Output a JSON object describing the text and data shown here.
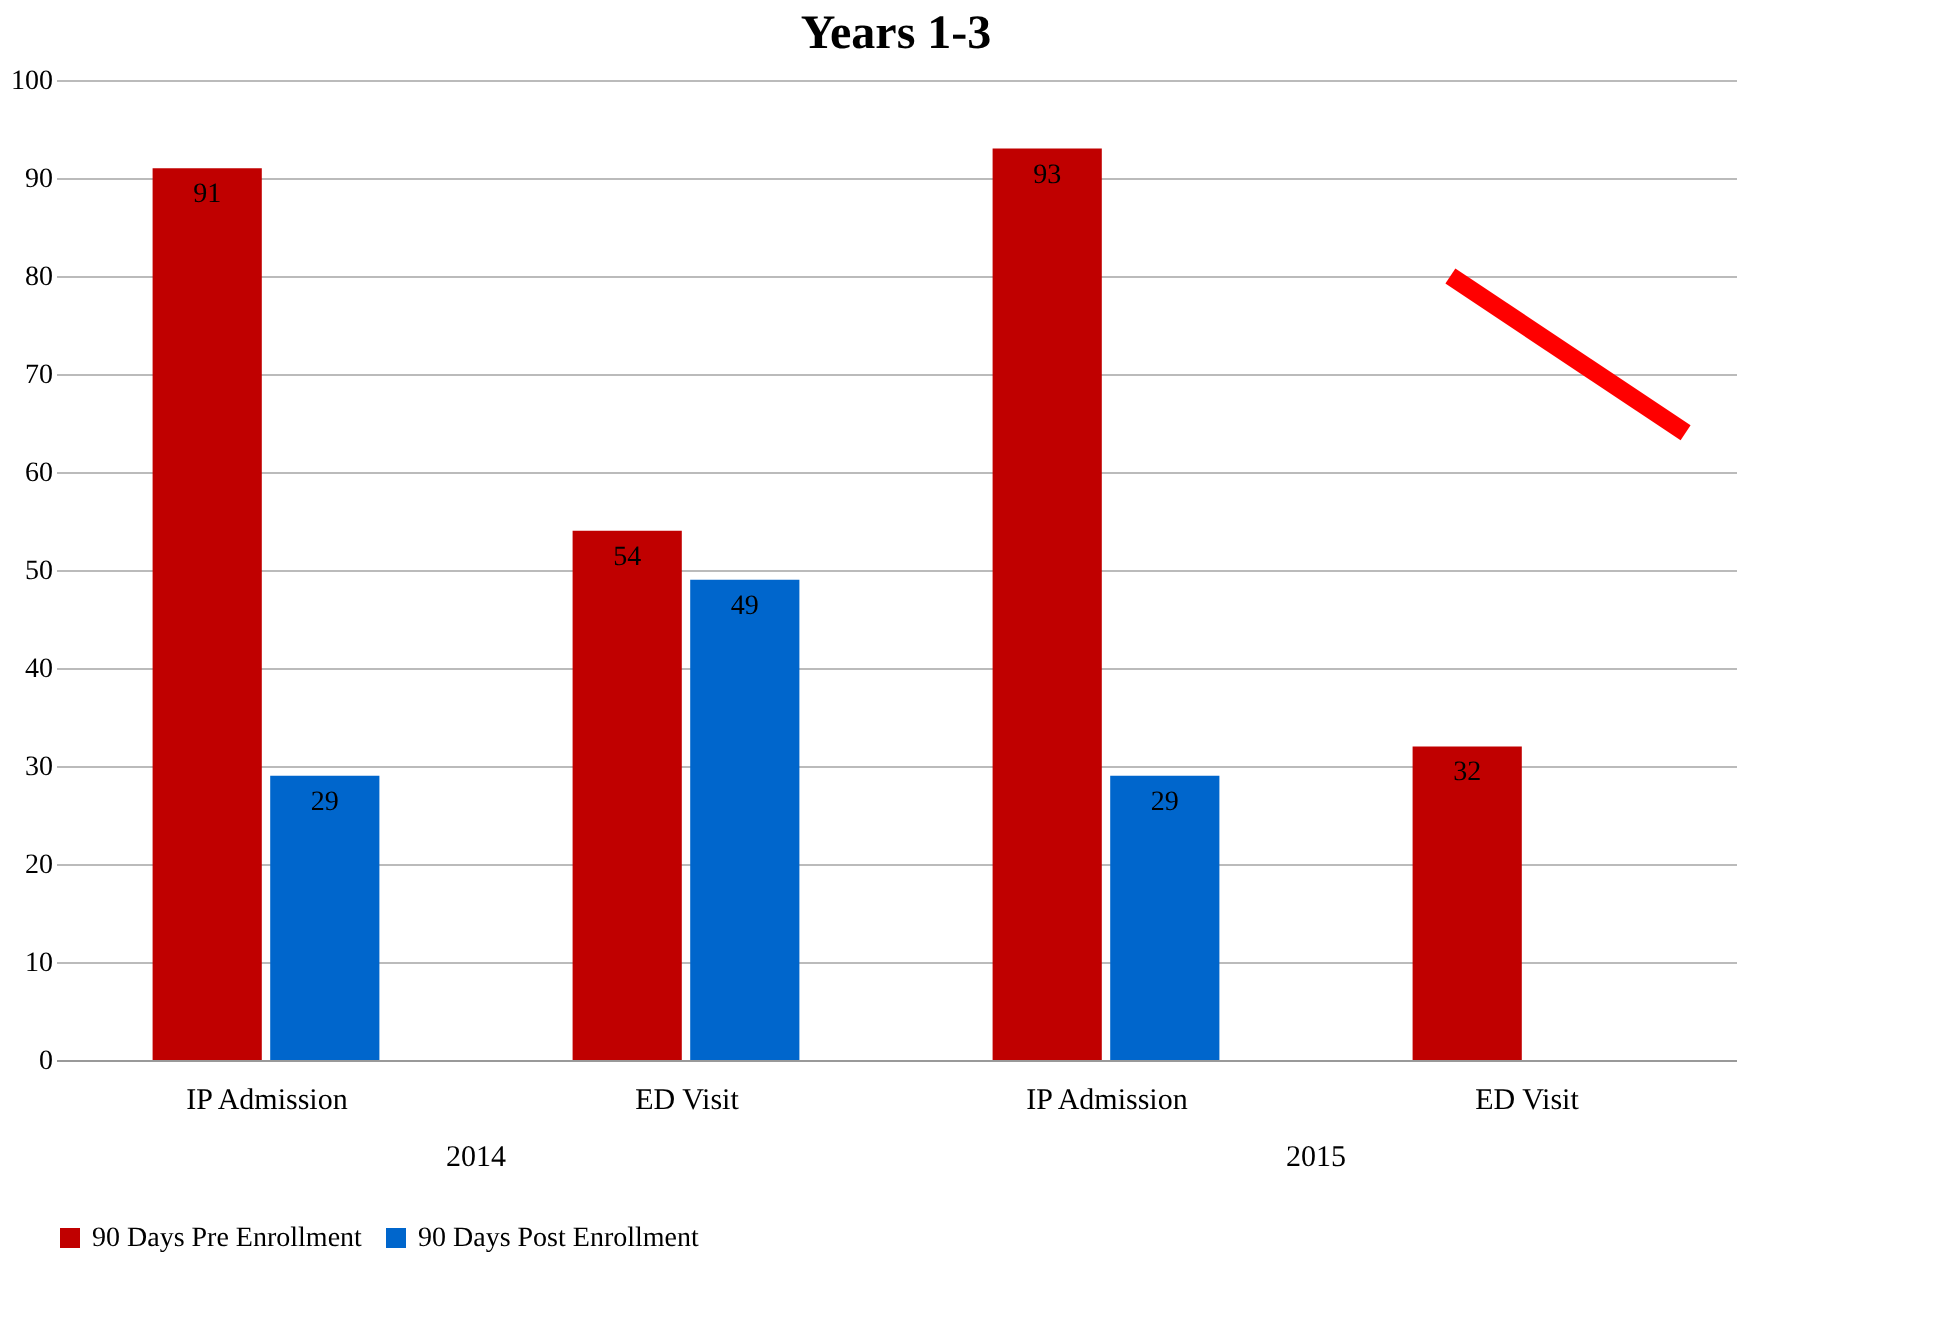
{
  "chart_data": {
    "type": "bar",
    "title": "Years 1-3",
    "categories": [
      "IP Admission",
      "ED Visit",
      "IP Admission",
      "ED Visit"
    ],
    "series": [
      {
        "name": "90 Days Pre Enrollment",
        "color": "#c00000",
        "values": [
          91,
          54,
          93,
          32
        ]
      },
      {
        "name": "90 Days Post Enrollment",
        "color": "#0066cc",
        "values": [
          29,
          49,
          29,
          null
        ]
      }
    ],
    "annotations": [
      "2014",
      "2015"
    ],
    "ylim": [
      0,
      100
    ],
    "yticks": [
      0,
      10,
      20,
      30,
      40,
      50,
      60,
      70,
      80,
      90,
      100
    ],
    "grid": "y",
    "legend": "bottom",
    "data_labels": true
  }
}
